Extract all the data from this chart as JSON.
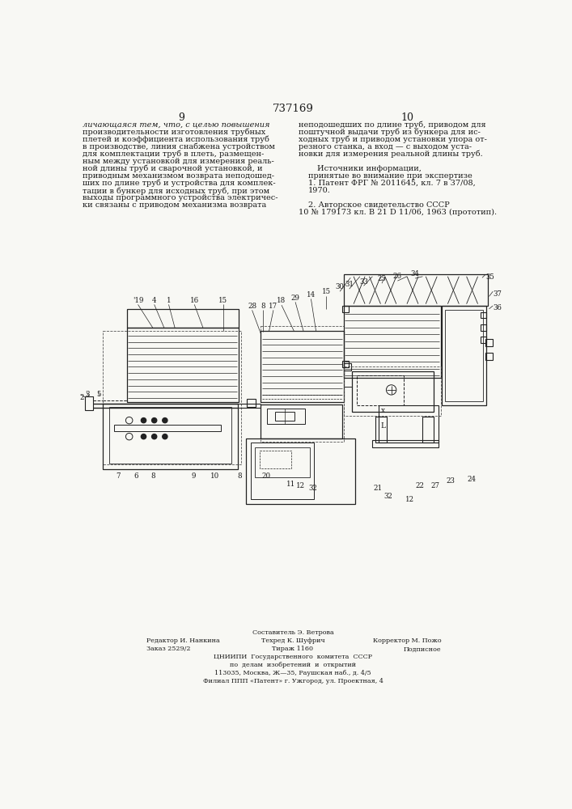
{
  "page_number_center": "737169",
  "page_left": "9",
  "page_right": "10",
  "bg_color": "#f8f8f4",
  "text_color": "#1a1a1a",
  "font_size_body": 7.0,
  "font_size_small": 5.8,
  "line_color": "#222222",
  "col_left_italic": "личающаяся тем, что, с целью повышения",
  "col_left_normal": [
    "производительности изготовления трубных",
    "плетей и коэффициента использования труб",
    "в производстве, линия снабжена устройством",
    "для комплектации труб в плеть, размещен-",
    "ным между установкой для измерения реаль-",
    "ной длины труб и сварочной установкой, и",
    "приводным механизмом возврата неподошед-",
    "ших по длине труб и устройства для комплек-",
    "тации в бункер для исходных труб, при этом",
    "выходы программного устройства электричес-",
    "ки связаны с приводом механизма возврата"
  ],
  "col_right_lines": [
    "неподошедших по длине труб, приводом для",
    "поштучной выдачи труб из бункера для ис-",
    "ходных труб и приводом установки упора от-",
    "резного станка, а вход — с выходом уста-",
    "новки для измерения реальной длины труб.",
    "",
    "Источники информации,",
    "принятые во внимание при экспертизе",
    "1. Патент ФРГ № 2011645, кл. 7 в 37/08,",
    "1970.",
    "",
    "2. Авторское свидетельство СССР",
    "10 № 179173 кл. В 21 D 11/06, 1963 (прототип)."
  ],
  "footer_line1": "Составитель Э. Ветрова",
  "footer_line2a": "Редактор И. Нанкина",
  "footer_line2b": "Техред К. Шуфрич",
  "footer_line2c": "Корректор М. Пожо",
  "footer_line3a": "Заказ 2529/2",
  "footer_line3b": "Тираж 1160",
  "footer_line3c": "Подписное",
  "footer_line4": "ЦНИИПИ  Государственного  комитета  СССР",
  "footer_line5": "по  делам  изобретений  и  открытий",
  "footer_line6": "113035, Москва, Ж—35, Раушская наб., д. 4/5",
  "footer_line7": "Филиал ППП «Патент» г. Ужгород, ул. Проектная, 4"
}
